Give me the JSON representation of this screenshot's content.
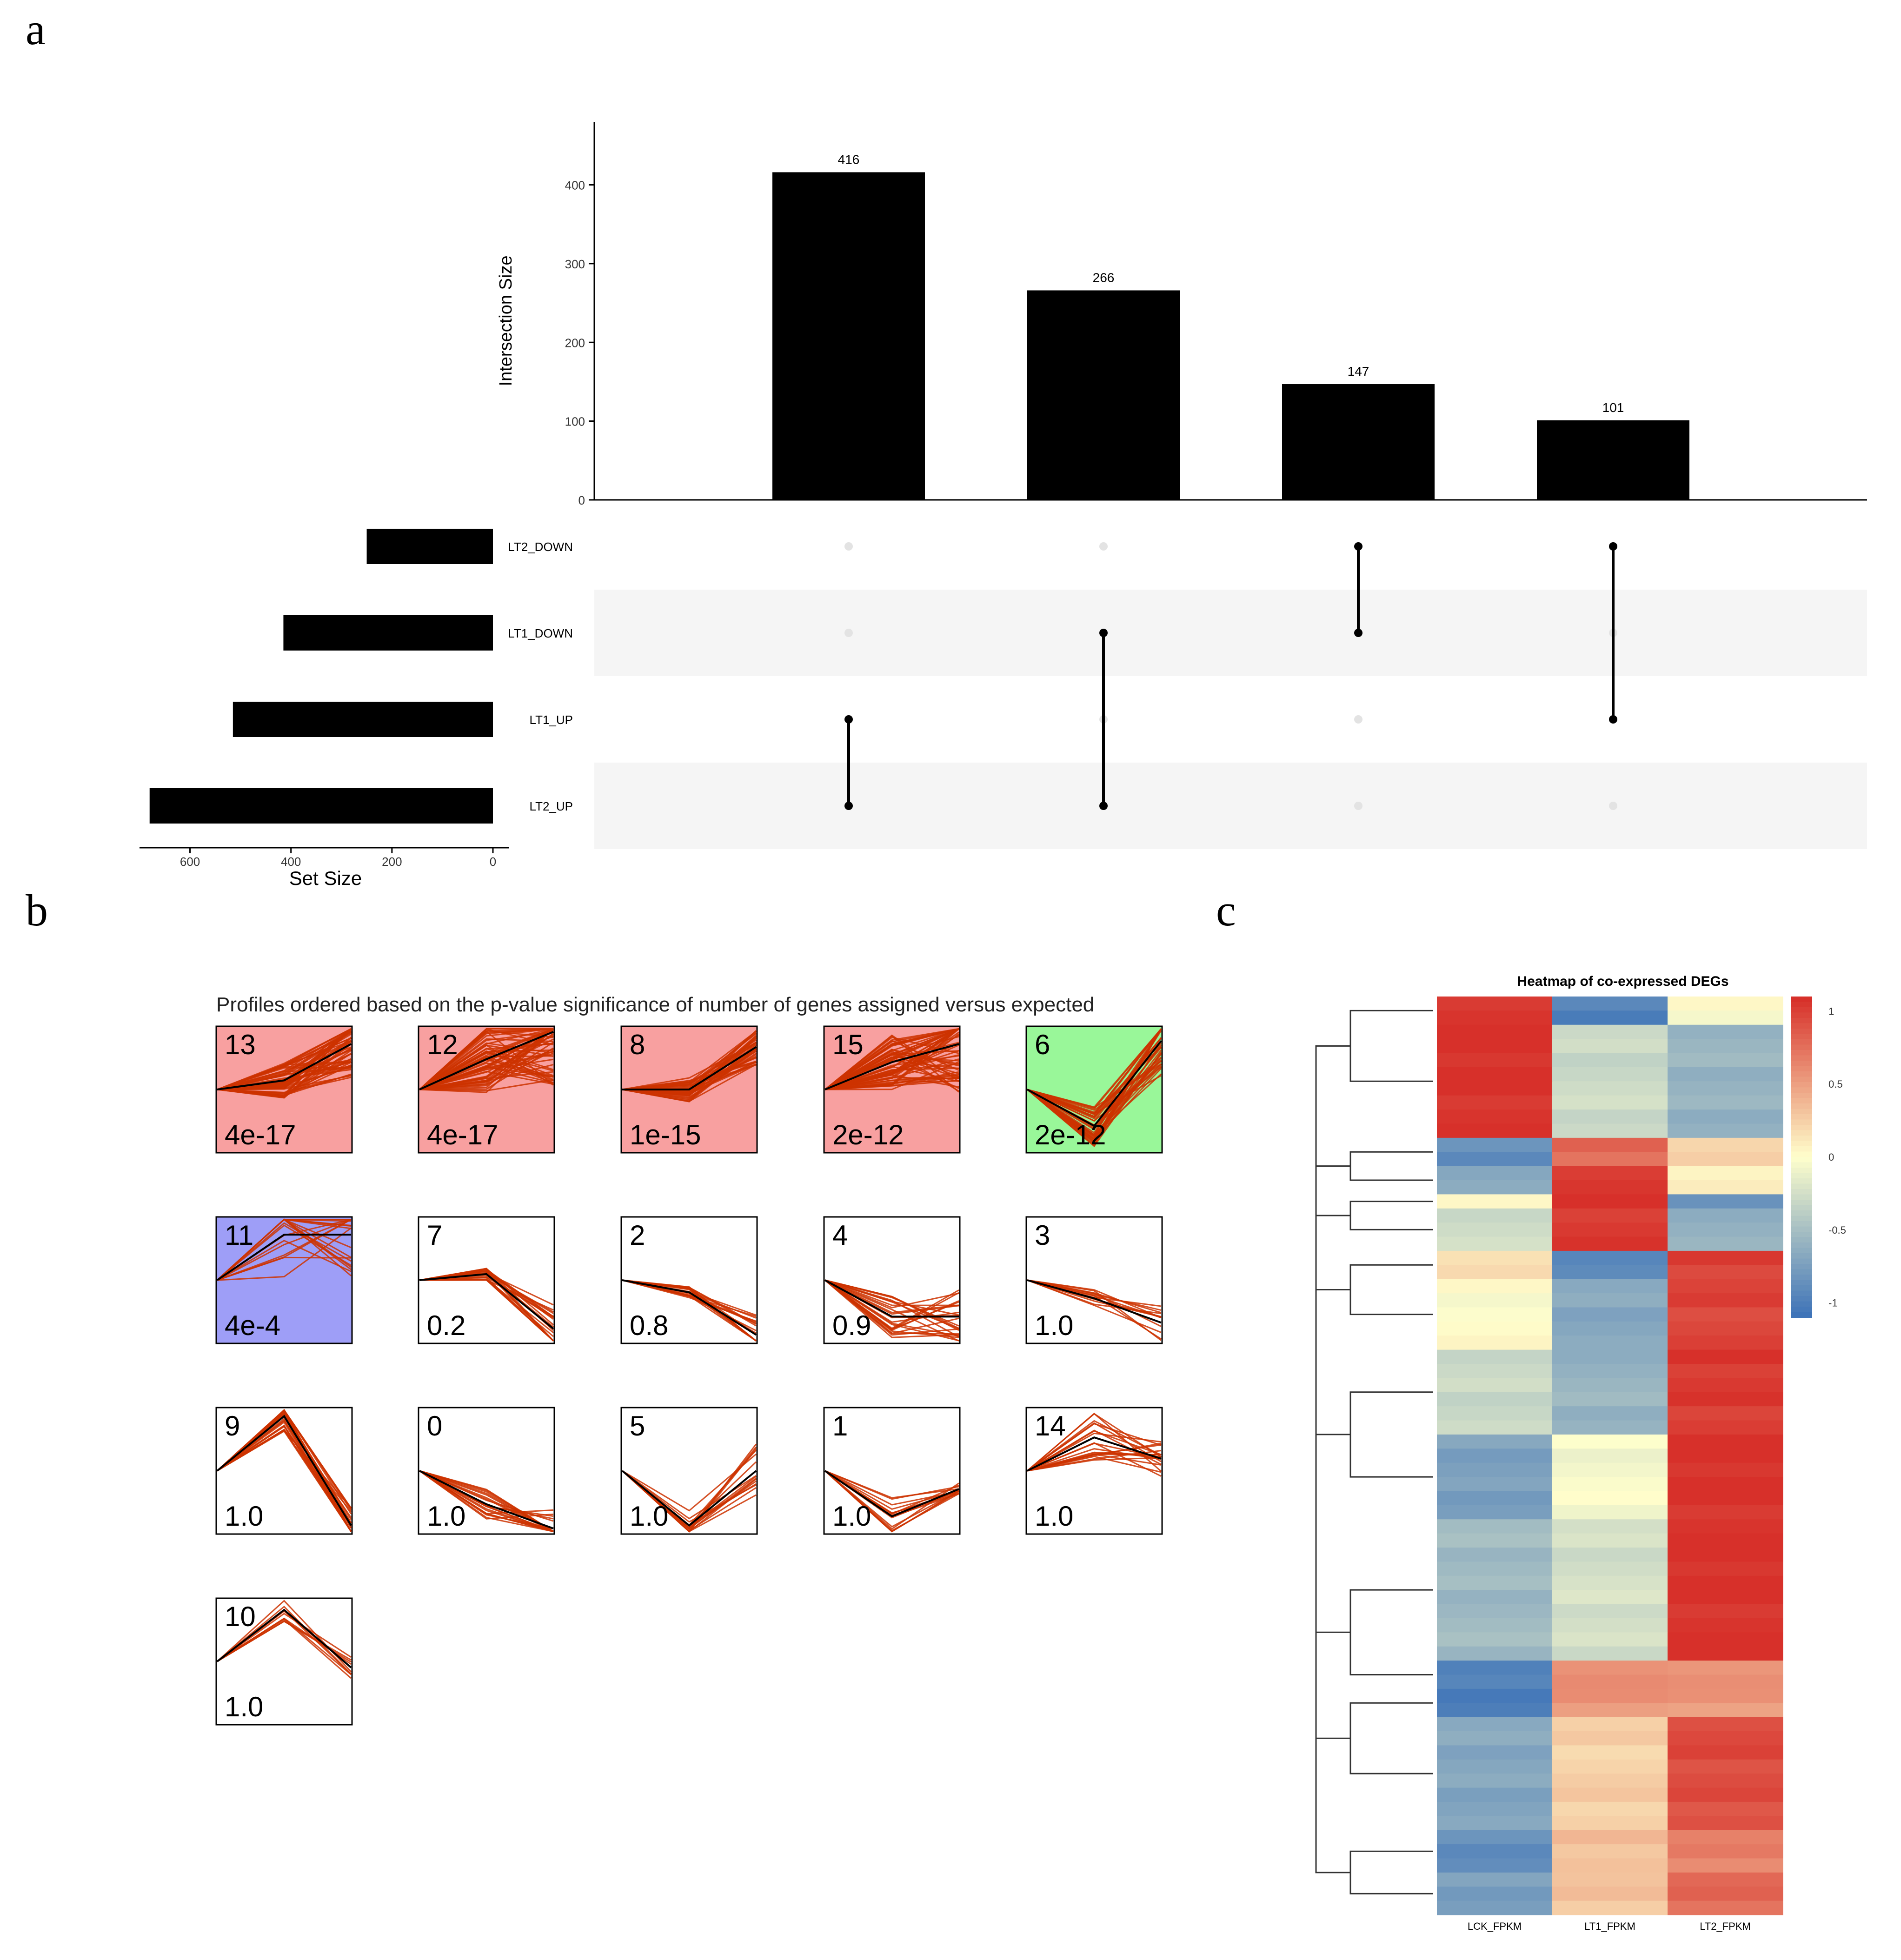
{
  "panels": {
    "a": "a",
    "b": "b",
    "c": "c"
  },
  "colors": {
    "bar": "#000000",
    "dot_off": "#e3e3e3",
    "row_shade": "#f5f5f5",
    "profile_line": "#cc3300",
    "profile_mean": "#000000",
    "sig_red": "#f8a0a0",
    "sig_green": "#99f799",
    "sig_blue": "#9e9ef7",
    "heat_low": "#3f74b8",
    "heat_mid": "#ffffcc",
    "heat_high": "#d7302a"
  },
  "chart_data": [
    {
      "id": "upset",
      "type": "bar",
      "title": "",
      "ylabel": "Intersection Size",
      "ylim": [
        0,
        480
      ],
      "yticks": [
        0,
        100,
        200,
        300,
        400
      ],
      "values": [
        416,
        266,
        147,
        101
      ],
      "sets": [
        "LT2_DOWN",
        "LT1_DOWN",
        "LT1_UP",
        "LT2_UP"
      ],
      "set_sizes": [
        250,
        415,
        515,
        680
      ],
      "set_size_label": "Set Size",
      "set_size_ticks": [
        600,
        400,
        200,
        0
      ],
      "set_size_max": 700,
      "memberships": [
        [
          "LT1_UP",
          "LT2_UP"
        ],
        [
          "LT1_DOWN",
          "LT2_UP"
        ],
        [
          "LT2_DOWN",
          "LT1_DOWN"
        ],
        [
          "LT2_DOWN",
          "LT1_UP"
        ]
      ]
    },
    {
      "id": "stem_profiles",
      "type": "line",
      "title": "Profiles ordered based on the p-value significance of number of genes assigned versus expected",
      "profiles": [
        {
          "id": "13",
          "p": "4e-17",
          "bg": "red",
          "mean": [
            0,
            0.15,
            0.75
          ],
          "n": 60,
          "spread": [
            0,
            0.3,
            0.55
          ]
        },
        {
          "id": "12",
          "p": "4e-17",
          "bg": "red",
          "mean": [
            0,
            0.5,
            0.95
          ],
          "n": 60,
          "spread": [
            0,
            0.55,
            0.9
          ]
        },
        {
          "id": "8",
          "p": "1e-15",
          "bg": "red",
          "mean": [
            0,
            0,
            0.7
          ],
          "n": 40,
          "spread": [
            0,
            0.2,
            0.3
          ]
        },
        {
          "id": "15",
          "p": "2e-12",
          "bg": "red",
          "mean": [
            0,
            0.45,
            0.75
          ],
          "n": 60,
          "spread": [
            0,
            0.45,
            0.8
          ]
        },
        {
          "id": "6",
          "p": "2e-12",
          "bg": "green",
          "mean": [
            0,
            -0.6,
            0.8
          ],
          "n": 40,
          "spread": [
            0,
            0.35,
            0.6
          ]
        },
        {
          "id": "11",
          "p": "4e-4",
          "bg": "blue",
          "mean": [
            0,
            0.75,
            0.75
          ],
          "n": 20,
          "spread": [
            0,
            0.7,
            0.7
          ]
        },
        {
          "id": "7",
          "p": "0.2",
          "bg": "none",
          "mean": [
            0,
            0.1,
            -0.8
          ],
          "n": 20,
          "spread": [
            0,
            0.1,
            0.4
          ]
        },
        {
          "id": "2",
          "p": "0.8",
          "bg": "none",
          "mean": [
            0,
            -0.2,
            -0.9
          ],
          "n": 20,
          "spread": [
            0,
            0.1,
            0.35
          ]
        },
        {
          "id": "4",
          "p": "0.9",
          "bg": "none",
          "mean": [
            0,
            -0.6,
            -0.6
          ],
          "n": 25,
          "spread": [
            0,
            0.35,
            0.45
          ]
        },
        {
          "id": "3",
          "p": "1.0",
          "bg": "none",
          "mean": [
            0,
            -0.3,
            -0.7
          ],
          "n": 12,
          "spread": [
            0,
            0.15,
            0.35
          ]
        },
        {
          "id": "9",
          "p": "1.0",
          "bg": "none",
          "mean": [
            0,
            0.9,
            -0.9
          ],
          "n": 25,
          "spread": [
            0,
            0.25,
            0.3
          ]
        },
        {
          "id": "0",
          "p": "1.0",
          "bg": "none",
          "mean": [
            0,
            -0.55,
            -0.95
          ],
          "n": 20,
          "spread": [
            0,
            0.25,
            0.35
          ]
        },
        {
          "id": "5",
          "p": "1.0",
          "bg": "none",
          "mean": [
            0,
            -0.9,
            0
          ],
          "n": 15,
          "spread": [
            0,
            0.25,
            0.45
          ]
        },
        {
          "id": "1",
          "p": "1.0",
          "bg": "none",
          "mean": [
            0,
            -0.75,
            -0.3
          ],
          "n": 15,
          "spread": [
            0,
            0.35,
            0.1
          ]
        },
        {
          "id": "14",
          "p": "1.0",
          "bg": "none",
          "mean": [
            0,
            0.55,
            0.2
          ],
          "n": 20,
          "spread": [
            0,
            0.4,
            0.3
          ]
        },
        {
          "id": "10",
          "p": "1.0",
          "bg": "none",
          "mean": [
            0,
            0.85,
            -0.1
          ],
          "n": 10,
          "spread": [
            0,
            0.2,
            0.2
          ]
        }
      ]
    },
    {
      "id": "heatmap",
      "type": "heatmap",
      "title": "Heatmap of co-expressed DEGs",
      "columns": [
        "LCK_FPKM",
        "LT1_FPKM",
        "LT2_FPKM"
      ],
      "colorbar_ticks": [
        1,
        0.5,
        0,
        -0.5,
        -1
      ],
      "row_blocks": [
        {
          "rows": 2,
          "values": [
            1.1,
            -1.0,
            0.0
          ]
        },
        {
          "rows": 8,
          "values": [
            1.1,
            -0.3,
            -0.6
          ]
        },
        {
          "rows": 2,
          "values": [
            -0.9,
            0.8,
            0.2
          ]
        },
        {
          "rows": 2,
          "values": [
            -0.7,
            1.05,
            0.1
          ]
        },
        {
          "rows": 1,
          "values": [
            0.1,
            1.05,
            -0.9
          ]
        },
        {
          "rows": 3,
          "values": [
            -0.3,
            1.05,
            -0.6
          ]
        },
        {
          "rows": 2,
          "values": [
            0.2,
            -0.9,
            1.0
          ]
        },
        {
          "rows": 5,
          "values": [
            0.0,
            -0.7,
            1.0
          ]
        },
        {
          "rows": 6,
          "values": [
            -0.3,
            -0.6,
            1.05
          ]
        },
        {
          "rows": 6,
          "values": [
            -0.75,
            -0.05,
            1.1
          ]
        },
        {
          "rows": 10,
          "values": [
            -0.55,
            -0.25,
            1.1
          ]
        },
        {
          "rows": 2,
          "values": [
            -1.0,
            0.6,
            0.6
          ]
        },
        {
          "rows": 2,
          "values": [
            -1.0,
            0.55,
            0.55
          ]
        },
        {
          "rows": 8,
          "values": [
            -0.7,
            0.25,
            0.95
          ]
        },
        {
          "rows": 3,
          "values": [
            -0.9,
            0.35,
            0.65
          ]
        },
        {
          "rows": 3,
          "values": [
            -0.75,
            0.3,
            0.8
          ]
        }
      ]
    }
  ]
}
